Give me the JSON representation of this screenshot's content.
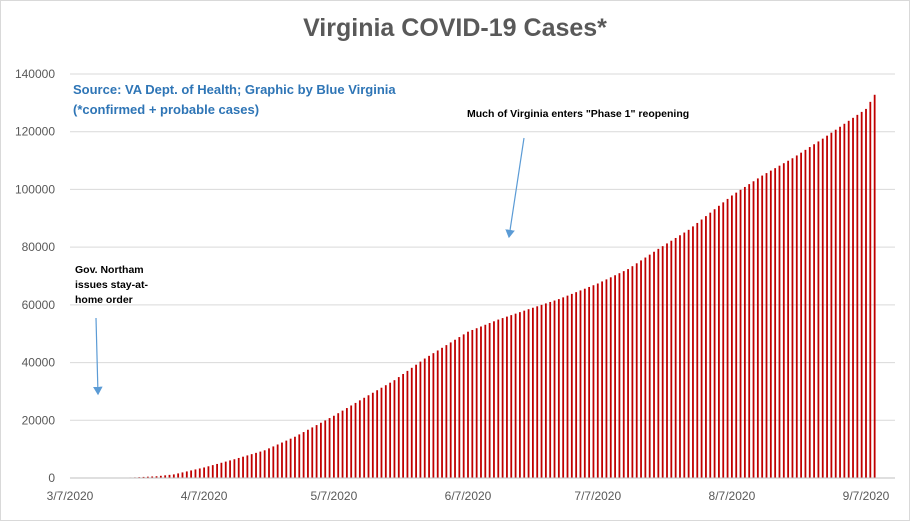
{
  "chart_data": {
    "type": "bar",
    "title": "Virginia COVID-19 Cases*",
    "subtitle_lines": [
      "Source: VA Dept. of Health; Graphic by Blue Virginia",
      "(*confirmed + probable cases)"
    ],
    "xlabel": "",
    "ylabel": "",
    "ylim": [
      0,
      140000
    ],
    "y_ticks": [
      0,
      20000,
      40000,
      60000,
      80000,
      100000,
      120000,
      140000
    ],
    "y_tick_labels": [
      "0",
      "20000",
      "40000",
      "60000",
      "80000",
      "100000",
      "120000",
      "140000"
    ],
    "x_tick_labels": [
      "3/7/2020",
      "4/7/2020",
      "5/7/2020",
      "6/7/2020",
      "7/7/2020",
      "8/7/2020",
      "9/7/2020"
    ],
    "x_tick_dates": [
      "2020-03-07",
      "2020-04-07",
      "2020-05-07",
      "2020-06-07",
      "2020-07-07",
      "2020-08-07",
      "2020-09-07"
    ],
    "grid": true,
    "bar_color": "#c00000",
    "series": [
      {
        "anchors": [
          [
            "2020-03-07",
            2
          ],
          [
            "2020-03-12",
            10
          ],
          [
            "2020-03-17",
            67
          ],
          [
            "2020-03-22",
            219
          ],
          [
            "2020-03-27",
            604
          ],
          [
            "2020-03-31",
            1250
          ],
          [
            "2020-04-07",
            3650
          ],
          [
            "2020-04-14",
            6500
          ],
          [
            "2020-04-21",
            9600
          ],
          [
            "2020-04-28",
            14300
          ],
          [
            "2020-05-07",
            21570
          ],
          [
            "2020-05-14",
            27800
          ],
          [
            "2020-05-21",
            33900
          ],
          [
            "2020-05-28",
            41400
          ],
          [
            "2020-06-07",
            50700
          ],
          [
            "2020-06-14",
            54900
          ],
          [
            "2020-06-21",
            58500
          ],
          [
            "2020-06-28",
            62000
          ],
          [
            "2020-07-07",
            67400
          ],
          [
            "2020-07-14",
            72400
          ],
          [
            "2020-07-21",
            79400
          ],
          [
            "2020-07-28",
            86000
          ],
          [
            "2020-08-07",
            97900
          ],
          [
            "2020-08-14",
            104800
          ],
          [
            "2020-08-21",
            110800
          ],
          [
            "2020-08-28",
            117600
          ],
          [
            "2020-09-07",
            127900
          ],
          [
            "2020-09-09",
            132800
          ]
        ]
      }
    ],
    "annotations": [
      {
        "id": "stay_home",
        "text": "Gov. Northam issues stay-at-home order",
        "lines": [
          "Gov. Northam",
          "issues stay-at-",
          "home order"
        ]
      },
      {
        "id": "phase1",
        "text": "Much of Virginia enters \"Phase 1\" reopening"
      }
    ]
  }
}
